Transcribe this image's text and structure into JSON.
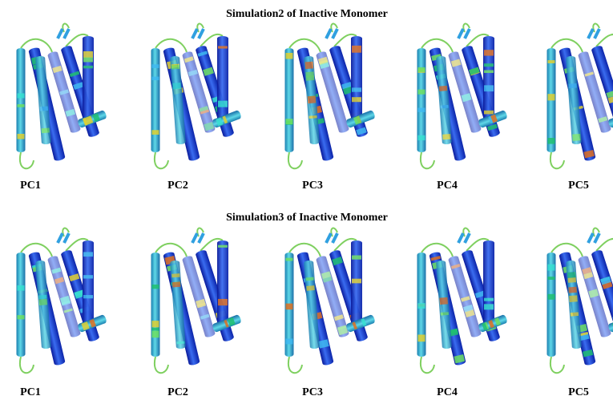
{
  "panels": [
    {
      "title": "Simulation2 of Inactive Monomer",
      "labels": [
        "PC1",
        "PC2",
        "PC3",
        "PC4",
        "PC5"
      ]
    },
    {
      "title": "Simulation3 of Inactive Monomer",
      "labels": [
        "PC1",
        "PC2",
        "PC3",
        "PC4",
        "PC5"
      ]
    }
  ]
}
